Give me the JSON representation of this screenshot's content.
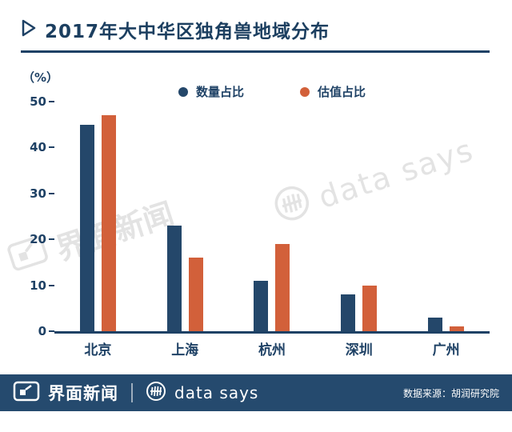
{
  "title": "2017年大中华区独角兽地域分布",
  "colors": {
    "navy": "#1e4165",
    "bar_navy": "#24476a",
    "bar_orange": "#d2603a",
    "footer_bg": "#254a6e",
    "watermark_gray": "#e3e3e3"
  },
  "icons": {
    "title_marker": "triangle-right-icon",
    "footer_left": "jiemian-logo-icon",
    "footer_mid": "data-says-circle-icon",
    "watermark_left": "jiemian-logo-icon",
    "watermark_right": "data-says-circle-icon"
  },
  "chart_data": {
    "type": "bar",
    "title": "2017年大中华区独角兽地域分布",
    "unit_label": "（%）",
    "categories": [
      "北京",
      "上海",
      "杭州",
      "深圳",
      "广州"
    ],
    "series": [
      {
        "name": "数量占比",
        "color": "#24476a",
        "values": [
          45,
          23,
          11,
          8,
          3
        ]
      },
      {
        "name": "估值占比",
        "color": "#d2603a",
        "values": [
          47,
          16,
          19,
          10,
          1
        ]
      }
    ],
    "ylim": [
      0,
      50
    ],
    "yticks": [
      50,
      40,
      30,
      20,
      10,
      0
    ],
    "grid": false,
    "legend_position": "top"
  },
  "watermarks": {
    "left": "界面新闻",
    "right": "data says"
  },
  "footer": {
    "brand1": "界面新闻",
    "brand2": "data says",
    "source": "数据来源：胡润研究院"
  }
}
